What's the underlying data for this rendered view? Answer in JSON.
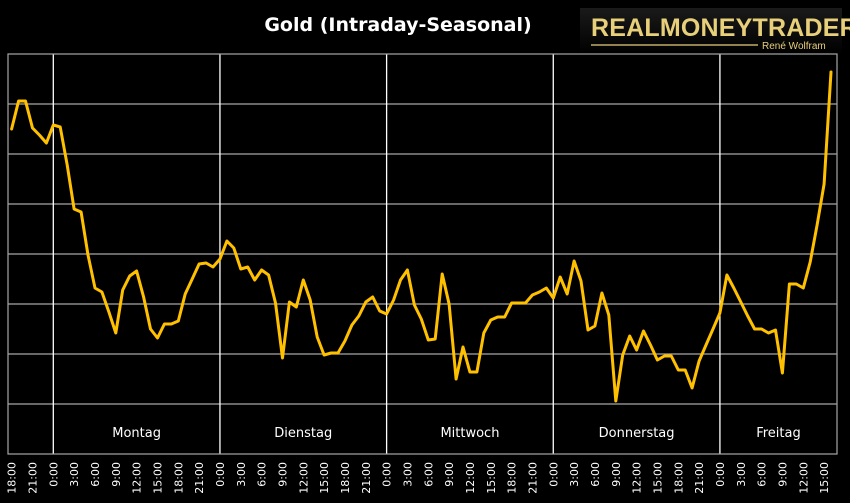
{
  "chart_data": {
    "type": "line",
    "title": "Gold (Intraday-Seasonal)",
    "xlabel": "",
    "ylabel": "",
    "ylim": [
      0,
      8
    ],
    "grid": true,
    "legend": "none",
    "line_color": "#ffc000",
    "background_color": "#000000",
    "grid_color": "#a6a6a6",
    "separator_color": "#ffffff",
    "x_unit": "hours relative to Monday 0:00",
    "x_tick_labels": [
      "18:00",
      "21:00",
      "0:00",
      "3:00",
      "6:00",
      "9:00",
      "12:00",
      "15:00",
      "18:00",
      "21:00",
      "0:00",
      "3:00",
      "6:00",
      "9:00",
      "12:00",
      "15:00",
      "18:00",
      "21:00",
      "0:00",
      "3:00",
      "6:00",
      "9:00",
      "12:00",
      "15:00",
      "18:00",
      "21:00",
      "0:00",
      "3:00",
      "6:00",
      "9:00",
      "12:00",
      "15:00",
      "18:00",
      "21:00",
      "0:00",
      "3:00",
      "6:00",
      "9:00",
      "12:00",
      "15:00"
    ],
    "day_labels": [
      "Montag",
      "Dienstag",
      "Mittwoch",
      "Donnerstag",
      "Freitag"
    ],
    "x_start_hour": -6,
    "x_step_hours": 1,
    "series": [
      {
        "name": "Gold",
        "values": [
          6.5,
          7.06,
          7.06,
          6.52,
          6.38,
          6.22,
          6.58,
          6.54,
          5.78,
          4.9,
          4.84,
          3.98,
          3.32,
          3.24,
          2.84,
          2.42,
          3.28,
          3.56,
          3.66,
          3.14,
          2.5,
          2.32,
          2.6,
          2.6,
          2.66,
          3.2,
          3.5,
          3.8,
          3.82,
          3.74,
          3.9,
          4.26,
          4.12,
          3.7,
          3.74,
          3.48,
          3.68,
          3.58,
          3.02,
          1.92,
          3.04,
          2.94,
          3.48,
          3.08,
          2.34,
          1.98,
          2.02,
          2.02,
          2.26,
          2.58,
          2.76,
          3.04,
          3.14,
          2.86,
          2.8,
          3.08,
          3.48,
          3.68,
          2.98,
          2.7,
          2.28,
          2.3,
          3.6,
          3.0,
          1.5,
          2.14,
          1.64,
          1.64,
          2.42,
          2.68,
          2.74,
          2.74,
          3.02,
          3.02,
          3.02,
          3.18,
          3.24,
          3.32,
          3.12,
          3.54,
          3.2,
          3.86,
          3.46,
          2.48,
          2.56,
          3.22,
          2.78,
          1.06,
          1.98,
          2.36,
          2.08,
          2.46,
          2.18,
          1.88,
          1.96,
          1.96,
          1.68,
          1.68,
          1.32,
          1.86,
          2.18,
          2.5,
          2.82,
          3.58,
          3.32,
          3.04,
          2.76,
          2.5,
          2.5,
          2.42,
          2.48,
          1.62,
          3.4,
          3.4,
          3.32,
          3.84,
          4.58,
          5.4,
          7.64
        ]
      }
    ]
  },
  "logo": {
    "name": "REALMONEYTRADER",
    "author": "René Wolfram"
  }
}
